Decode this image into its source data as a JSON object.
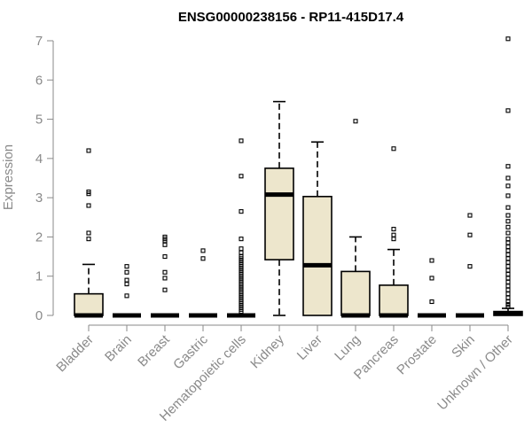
{
  "chart_data": {
    "type": "boxplot",
    "title": "ENSG00000238156 - RP11-415D17.4",
    "ylabel": "Expression",
    "xlabel": "",
    "ylim": [
      0,
      7.2
    ],
    "yticks": [
      0,
      1,
      2,
      3,
      4,
      5,
      6,
      7
    ],
    "box_fill": "#ede6cc",
    "box_stroke": "#000000",
    "axis_color": "#8a8a8a",
    "categories": [
      "Bladder",
      "Brain",
      "Breast",
      "Gastric",
      "Hematopoietic cells",
      "Kidney",
      "Liver",
      "Lung",
      "Pancreas",
      "Prostate",
      "Skin",
      "Unknown / Other"
    ],
    "boxes": [
      {
        "q1": 0,
        "median": 0,
        "q3": 0.55,
        "whisker_low": 0,
        "whisker_high": 1.3,
        "outliers": [
          4.2,
          3.15,
          3.1,
          2.8,
          2.1,
          1.95
        ]
      },
      {
        "q1": 0,
        "median": 0,
        "q3": 0,
        "whisker_low": 0,
        "whisker_high": 0,
        "outliers": [
          1.25,
          1.1,
          0.9,
          0.8,
          0.5
        ]
      },
      {
        "q1": 0,
        "median": 0,
        "q3": 0,
        "whisker_low": 0,
        "whisker_high": 0,
        "outliers": [
          2.0,
          1.95,
          1.9,
          1.8,
          1.5,
          1.1,
          0.95,
          0.65
        ]
      },
      {
        "q1": 0,
        "median": 0,
        "q3": 0,
        "whisker_low": 0,
        "whisker_high": 0,
        "outliers": [
          1.65,
          1.45
        ]
      },
      {
        "q1": 0,
        "median": 0,
        "q3": 0,
        "whisker_low": 0,
        "whisker_high": 0,
        "outliers": [
          4.45,
          3.55,
          2.65,
          1.95,
          1.7,
          1.6,
          1.5,
          1.45,
          1.4,
          1.35,
          1.3,
          1.25,
          1.2,
          1.15,
          1.1,
          1.05,
          1.0,
          0.95,
          0.9,
          0.85,
          0.8,
          0.75,
          0.7,
          0.65,
          0.6,
          0.55,
          0.5,
          0.45,
          0.4,
          0.35,
          0.3,
          0.25,
          0.2,
          0.15,
          0.1
        ]
      },
      {
        "q1": 1.42,
        "median": 3.08,
        "q3": 3.75,
        "whisker_low": 0,
        "whisker_high": 5.45,
        "outliers": []
      },
      {
        "q1": 0,
        "median": 1.28,
        "q3": 3.03,
        "whisker_low": 0,
        "whisker_high": 4.42,
        "outliers": []
      },
      {
        "q1": 0,
        "median": 0,
        "q3": 1.12,
        "whisker_low": 0,
        "whisker_high": 2.0,
        "outliers": [
          4.95
        ]
      },
      {
        "q1": 0,
        "median": 0,
        "q3": 0.77,
        "whisker_low": 0,
        "whisker_high": 1.68,
        "outliers": [
          4.25,
          2.2,
          2.05,
          1.95
        ]
      },
      {
        "q1": 0,
        "median": 0,
        "q3": 0,
        "whisker_low": 0,
        "whisker_high": 0,
        "outliers": [
          1.4,
          0.95,
          0.35
        ]
      },
      {
        "q1": 0,
        "median": 0,
        "q3": 0,
        "whisker_low": 0,
        "whisker_high": 0,
        "outliers": [
          2.55,
          2.05,
          1.25
        ]
      },
      {
        "q1": 0,
        "median": 0.05,
        "q3": 0.1,
        "whisker_low": 0,
        "whisker_high": 0.18,
        "outliers": [
          7.05,
          5.22,
          3.8,
          3.5,
          3.3,
          3.05,
          2.75,
          2.55,
          2.4,
          2.25,
          2.1,
          1.95,
          1.85,
          1.75,
          1.65,
          1.55,
          1.45,
          1.35,
          1.25,
          1.15,
          1.05,
          0.95,
          0.85,
          0.75,
          0.65,
          0.55,
          0.45,
          0.35,
          0.28,
          0.22
        ]
      }
    ]
  }
}
